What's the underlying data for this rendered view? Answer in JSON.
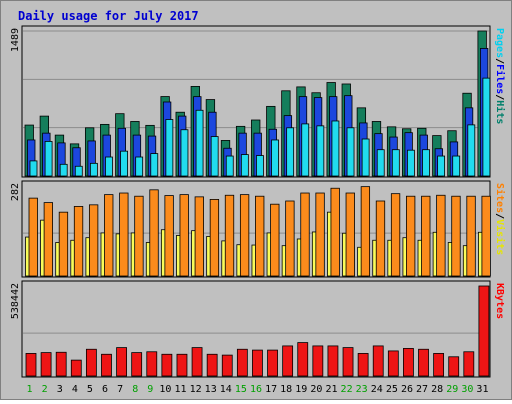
{
  "chart_data": {
    "type": "bar",
    "title": "Daily usage for July 2017",
    "days": [
      "1",
      "2",
      "3",
      "4",
      "5",
      "6",
      "7",
      "8",
      "9",
      "10",
      "11",
      "12",
      "13",
      "14",
      "15",
      "16",
      "17",
      "18",
      "19",
      "20",
      "21",
      "22",
      "23",
      "24",
      "25",
      "26",
      "27",
      "28",
      "29",
      "30",
      "31"
    ],
    "weekend_days": [
      "1",
      "2",
      "8",
      "9",
      "15",
      "16",
      "22",
      "23",
      "29",
      "30"
    ],
    "panels": [
      {
        "id": "hits",
        "max_label": "1489",
        "ymax": 1489,
        "axis_labels": [
          {
            "text": "Hits",
            "color": "#00806b"
          },
          {
            "text": "/",
            "color": "#000000"
          },
          {
            "text": "Files",
            "color": "#0000ff"
          },
          {
            "text": "/",
            "color": "#000000"
          },
          {
            "text": "Pages",
            "color": "#00d0f0"
          }
        ],
        "series": [
          {
            "name": "Hits",
            "color": "#157e5c",
            "values": [
              523,
              615,
              420,
              330,
              495,
              530,
              640,
              560,
              520,
              816,
              655,
              920,
              785,
              365,
              510,
              575,
              715,
              875,
              915,
              855,
              960,
              945,
              700,
              560,
              505,
              485,
              490,
              415,
              465,
              850,
              1489
            ]
          },
          {
            "name": "Files",
            "color": "#1c47de",
            "values": [
              370,
              440,
              340,
              290,
              360,
              420,
              490,
              420,
              410,
              760,
              615,
              815,
              655,
              285,
              440,
              440,
              480,
              620,
              815,
              805,
              815,
              825,
              545,
              435,
              400,
              445,
              420,
              280,
              350,
              700,
              1310
            ]
          },
          {
            "name": "Pages",
            "color": "#21dbef",
            "values": [
              155,
              355,
              120,
              100,
              130,
              195,
              255,
              195,
              230,
              580,
              475,
              675,
              405,
              205,
              220,
              210,
              370,
              495,
              535,
              515,
              565,
              495,
              380,
              270,
              270,
              265,
              270,
              205,
              205,
              525,
              1005
            ]
          }
        ]
      },
      {
        "id": "visits",
        "max_label": "282",
        "ymax": 282,
        "axis_labels": [
          {
            "text": "Visits",
            "color": "#e6e600"
          },
          {
            "text": "/",
            "color": "#000000"
          },
          {
            "text": "Sites",
            "color": "#ff8000"
          }
        ],
        "series": [
          {
            "name": "Sites",
            "color": "#fb8b1c",
            "values": [
              244,
              230,
              200,
              218,
              223,
              255,
              260,
              250,
              270,
              252,
              255,
              248,
              240,
              253,
              255,
              250,
              225,
              235,
              260,
              260,
              275,
              260,
              280,
              235,
              258,
              250,
              250,
              253,
              250,
              250,
              250
            ]
          },
          {
            "name": "Visits",
            "color": "#fafc5a",
            "values": [
              122,
              175,
              105,
              112,
              120,
              135,
              132,
              135,
              105,
              145,
              127,
              142,
              124,
              110,
              98,
              97,
              135,
              95,
              116,
              138,
              200,
              134,
              90,
              112,
              112,
              120,
              112,
              137,
              105,
              95,
              137
            ]
          }
        ]
      },
      {
        "id": "kbytes",
        "max_label": "538442",
        "ymax": 538442,
        "axis_labels": [
          {
            "text": "KBytes",
            "color": "#ff0000"
          }
        ],
        "series": [
          {
            "name": "KBytes",
            "color": "#ee1515",
            "values": [
              135000,
              140000,
              142000,
              95000,
              160000,
              130000,
              170000,
              140000,
              145000,
              130000,
              130000,
              170000,
              130000,
              125000,
              160000,
              155000,
              155000,
              180000,
              200000,
              180000,
              180000,
              170000,
              135000,
              180000,
              150000,
              165000,
              160000,
              135000,
              115000,
              145000,
              538442
            ]
          }
        ]
      }
    ]
  }
}
